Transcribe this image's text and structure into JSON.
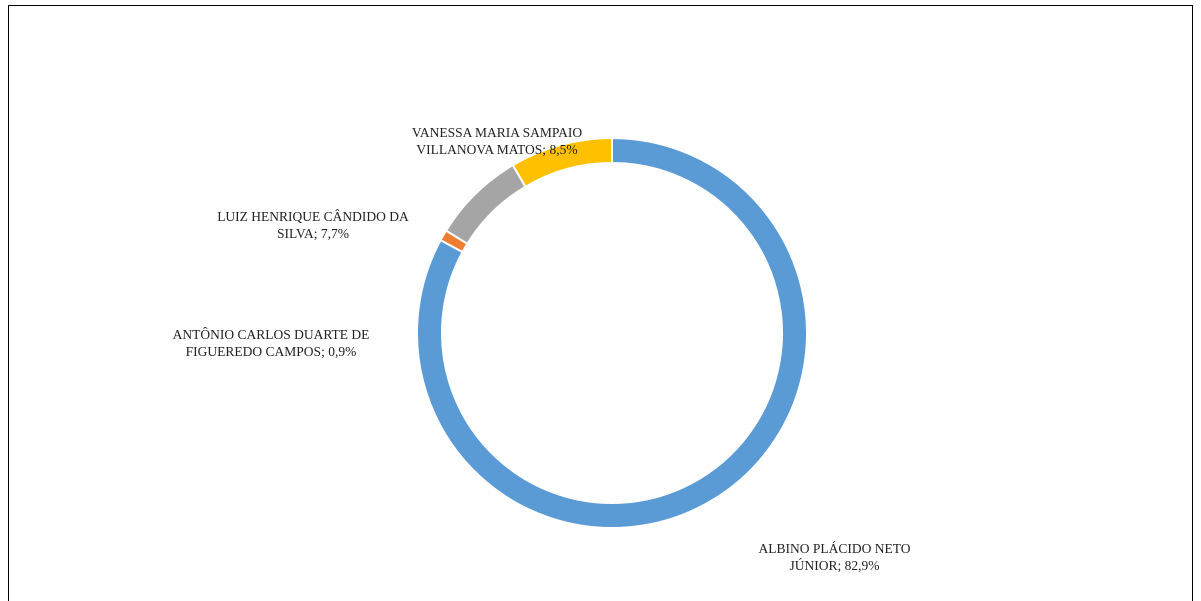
{
  "chart_data": {
    "type": "donut",
    "values": [
      82.9,
      0.9,
      7.7,
      8.5
    ],
    "value_labels": [
      "ALBINO PLÁCIDO NETO JÚNIOR; 82,9%",
      "ANTÔNIO CARLOS DUARTE DE FIGUEREDO CAMPOS; 0,9%",
      "LUIZ HENRIQUE CÂNDIDO DA SILVA; 7,7%",
      "VANESSA MARIA SAMPAIO VILLANOVA MATOS; 8,5%"
    ],
    "colors": [
      "#5b9bd5",
      "#ed7d31",
      "#a5a5a5",
      "#ffc000"
    ]
  }
}
